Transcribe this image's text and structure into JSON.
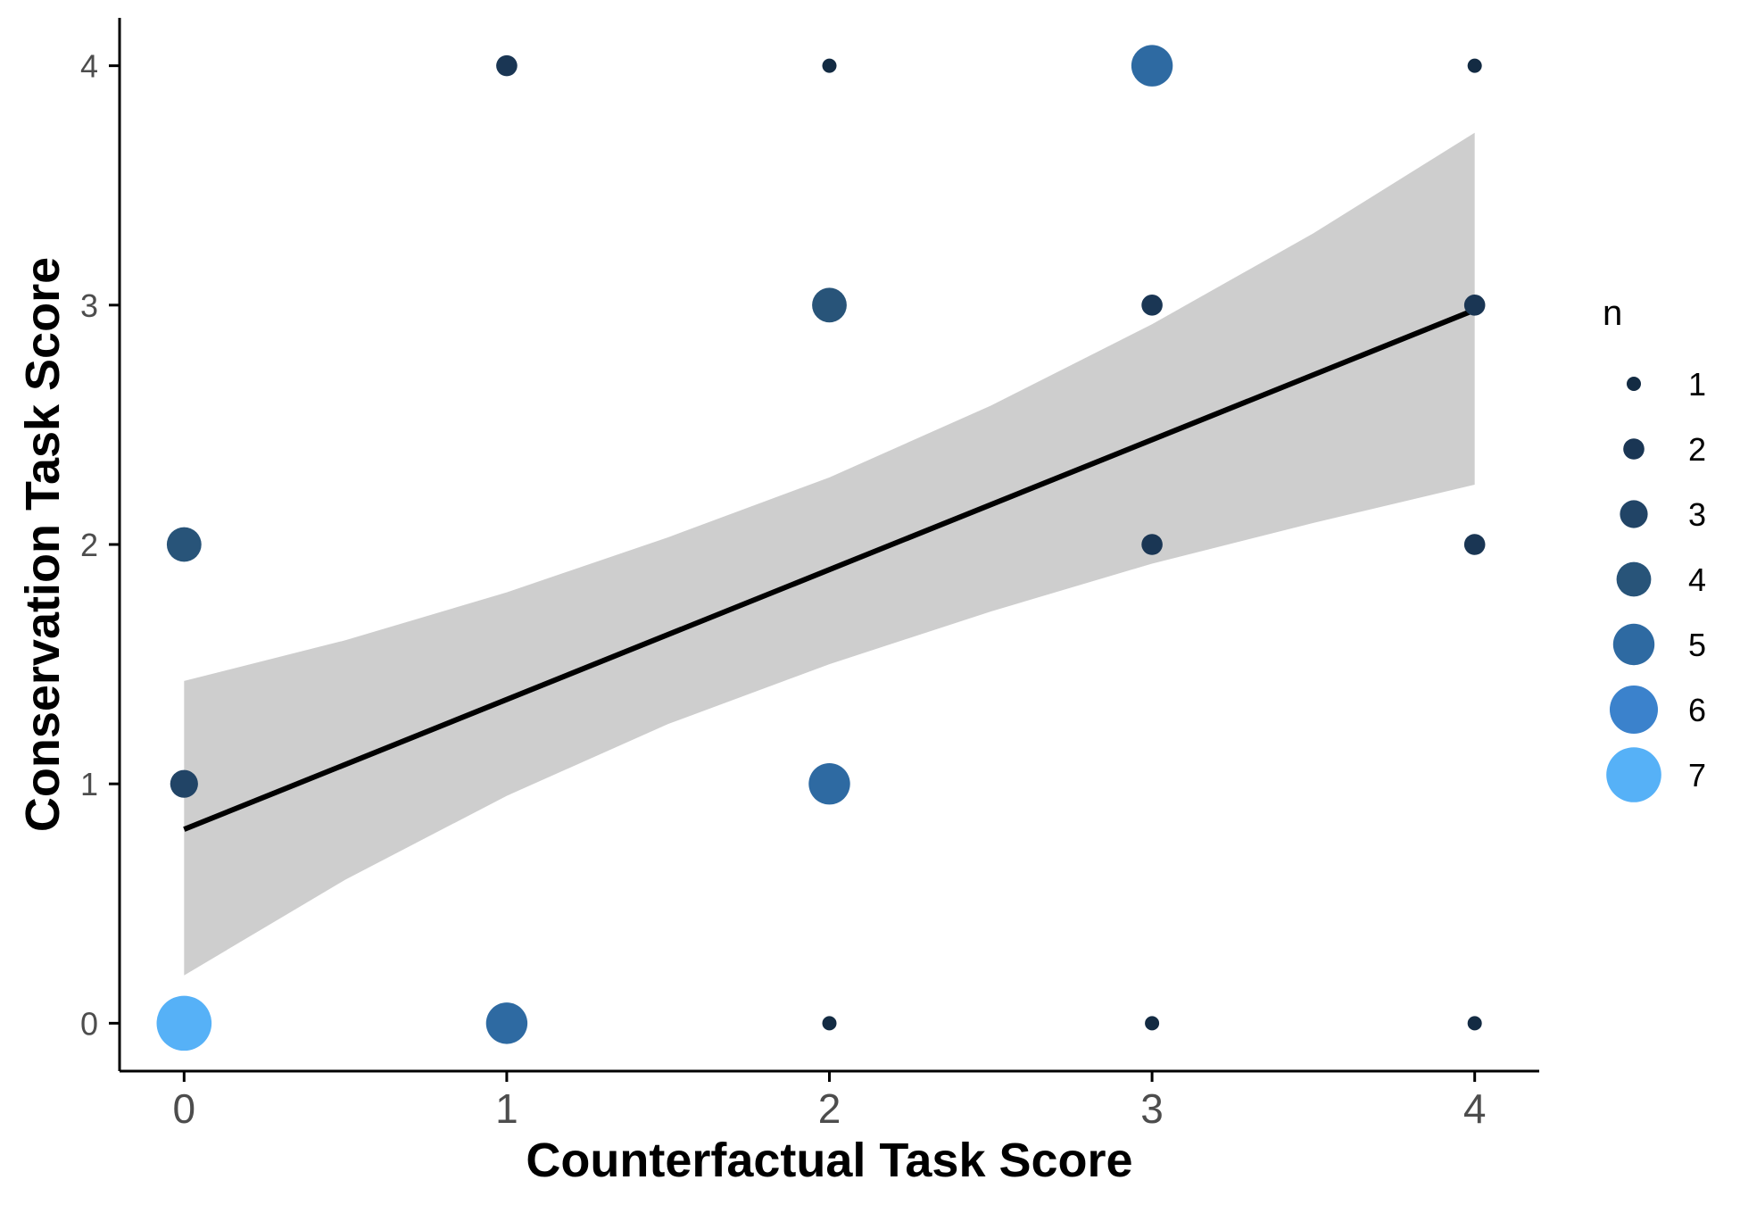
{
  "chart_data": {
    "type": "scatter",
    "xlabel": "Counterfactual Task Score",
    "ylabel": "Conservation Task Score",
    "xlim": [
      -0.2,
      4.2
    ],
    "ylim": [
      -0.2,
      4.2
    ],
    "x_ticks": [
      0,
      1,
      2,
      3,
      4
    ],
    "y_ticks": [
      0,
      1,
      2,
      3,
      4
    ],
    "x_tick_labels": [
      "0",
      "1",
      "2",
      "3",
      "4"
    ],
    "y_tick_labels": [
      "0",
      "1",
      "2",
      "3",
      "4"
    ],
    "grid": false,
    "legend": {
      "title": "n",
      "position": "right",
      "entries": [
        {
          "n": 1,
          "label": "1",
          "color": "#132b43"
        },
        {
          "n": 2,
          "label": "2",
          "color": "#1a3654"
        },
        {
          "n": 3,
          "label": "3",
          "color": "#214466"
        },
        {
          "n": 4,
          "label": "4",
          "color": "#285479"
        },
        {
          "n": 5,
          "label": "5",
          "color": "#2e6aa2"
        },
        {
          "n": 6,
          "label": "6",
          "color": "#3b82cc"
        },
        {
          "n": 7,
          "label": "7",
          "color": "#56b1f7"
        }
      ]
    },
    "points": [
      {
        "x": 0,
        "y": 0,
        "n": 7
      },
      {
        "x": 0,
        "y": 1,
        "n": 3
      },
      {
        "x": 0,
        "y": 2,
        "n": 4
      },
      {
        "x": 1,
        "y": 0,
        "n": 5
      },
      {
        "x": 1,
        "y": 4,
        "n": 2
      },
      {
        "x": 2,
        "y": 0,
        "n": 1
      },
      {
        "x": 2,
        "y": 1,
        "n": 5
      },
      {
        "x": 2,
        "y": 3,
        "n": 4
      },
      {
        "x": 2,
        "y": 4,
        "n": 1
      },
      {
        "x": 3,
        "y": 0,
        "n": 1
      },
      {
        "x": 3,
        "y": 2,
        "n": 2
      },
      {
        "x": 3,
        "y": 3,
        "n": 2
      },
      {
        "x": 3,
        "y": 4,
        "n": 5
      },
      {
        "x": 4,
        "y": 0,
        "n": 1
      },
      {
        "x": 4,
        "y": 2,
        "n": 2
      },
      {
        "x": 4,
        "y": 3,
        "n": 2
      },
      {
        "x": 4,
        "y": 4,
        "n": 1
      }
    ],
    "fit_line": {
      "method": "linear",
      "color": "#000000",
      "x": [
        0,
        4
      ],
      "y": [
        0.81,
        2.98
      ]
    },
    "confidence_band": {
      "color": "#bebebe",
      "x": [
        0,
        0.5,
        1,
        1.5,
        2,
        2.5,
        3,
        3.5,
        4
      ],
      "upper": [
        1.43,
        1.6,
        1.8,
        2.03,
        2.28,
        2.58,
        2.92,
        3.3,
        3.72
      ],
      "lower": [
        0.2,
        0.6,
        0.95,
        1.25,
        1.5,
        1.72,
        1.92,
        2.09,
        2.25
      ]
    }
  }
}
